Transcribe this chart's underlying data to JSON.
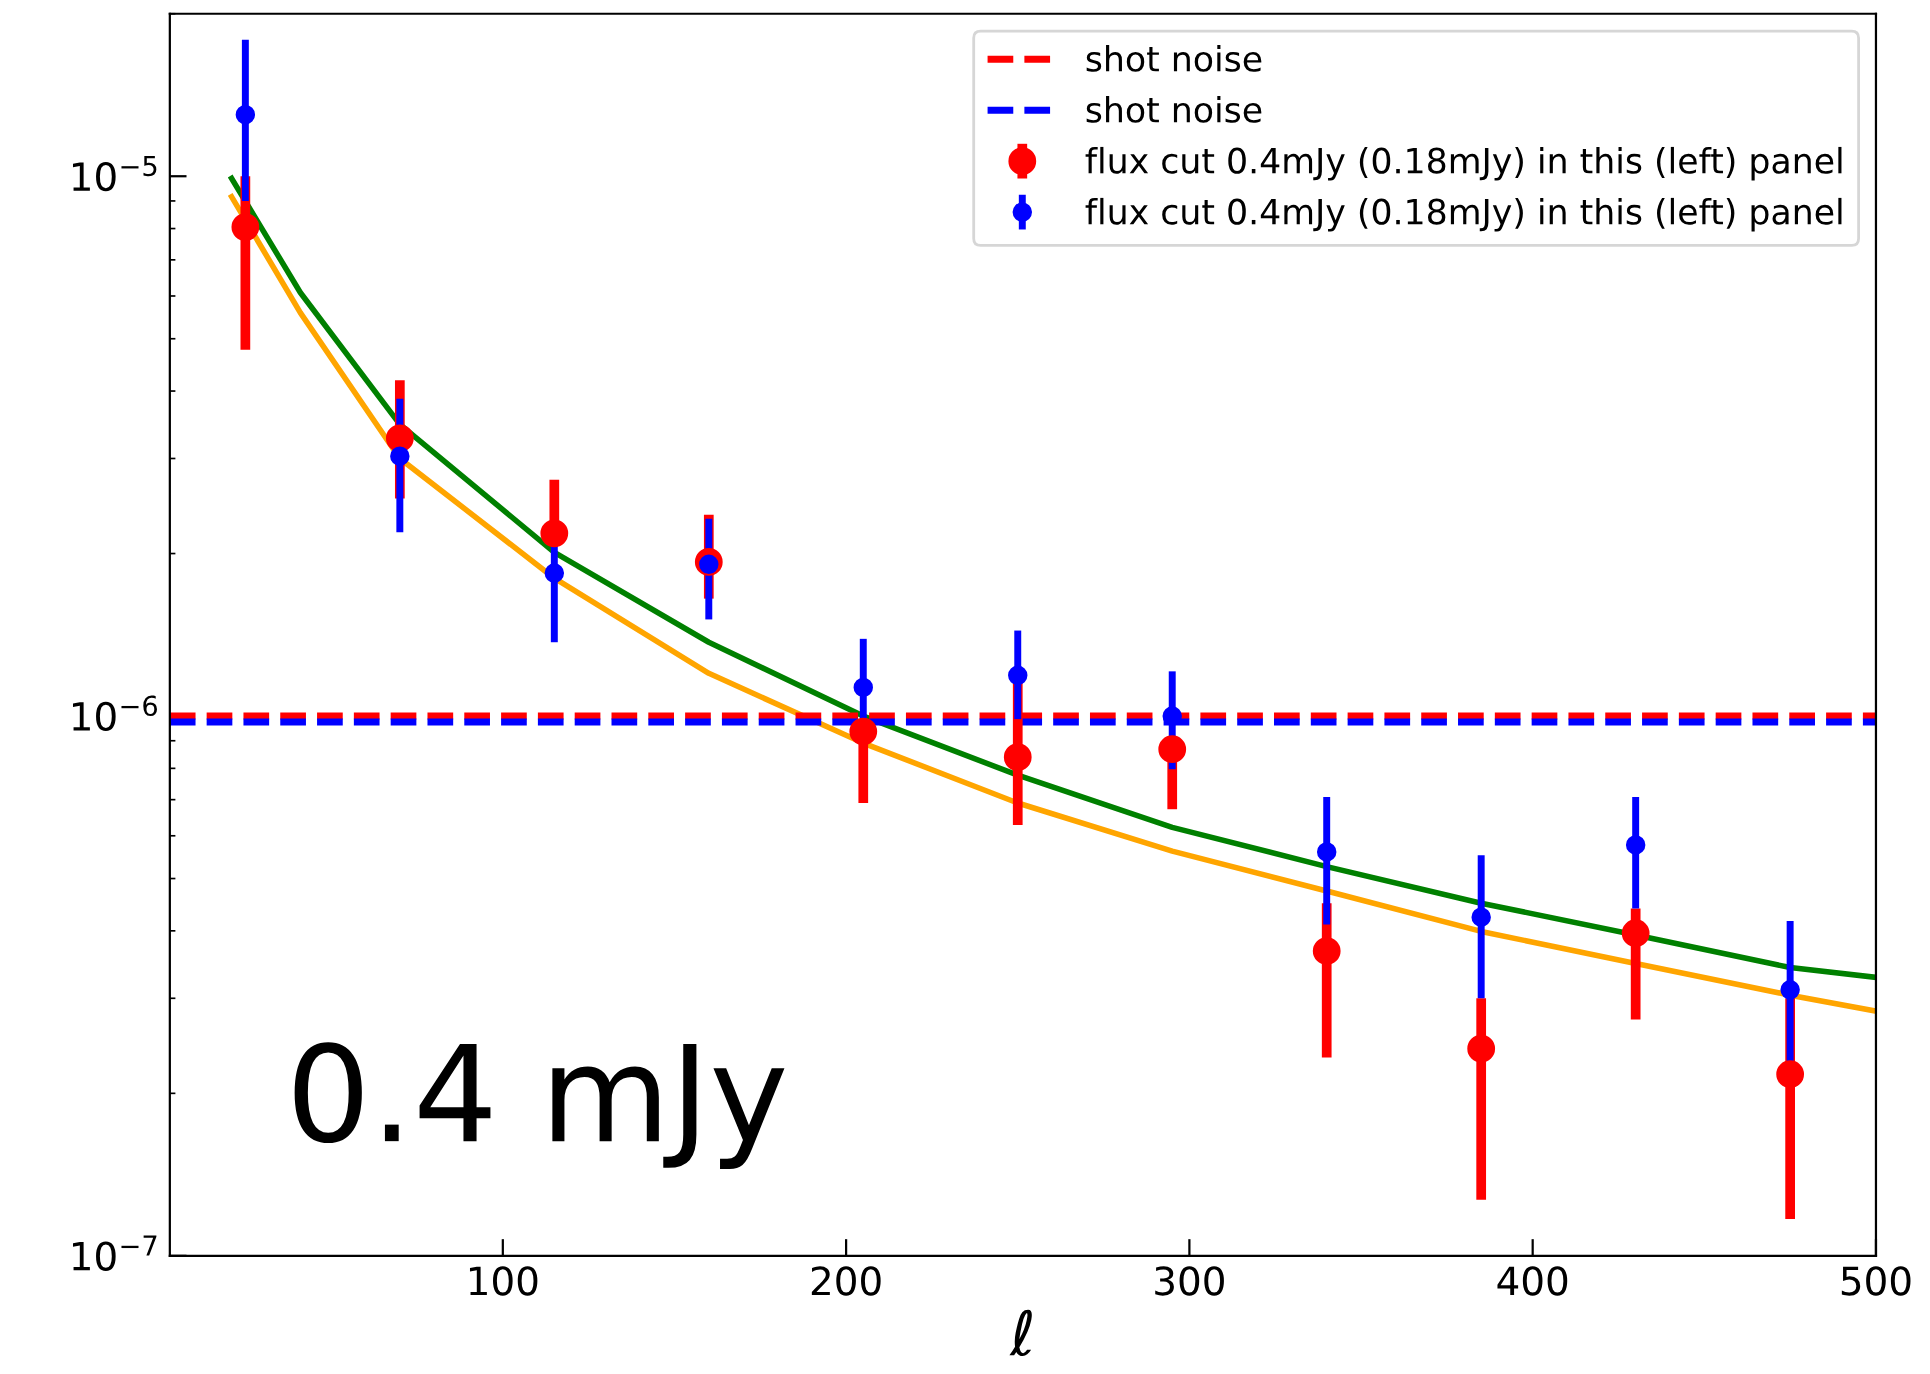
{
  "chart_data": {
    "type": "scatter",
    "xlabel": "ℓ",
    "xlim": [
      3,
      500
    ],
    "xticks": [
      100,
      200,
      300,
      400,
      500
    ],
    "ylim": [
      1e-07,
      2e-05
    ],
    "yticks": [
      {
        "value": 1e-07,
        "label": "10$^{−7}$"
      },
      {
        "value": 1e-06,
        "label": "10$^{−6}$"
      },
      {
        "value": 1e-05,
        "label": "10$^{−5}$"
      }
    ],
    "log": "y",
    "grid": false,
    "legend": "top right",
    "series": [
      {
        "type": "line",
        "color": "#ffa500",
        "marker": "none",
        "x": [
          21,
          41,
          70,
          115,
          160,
          205,
          250,
          295,
          340,
          385,
          430,
          475,
          500
        ],
        "values": [
          9.16e-06,
          5.59e-06,
          3e-06,
          1.8e-06,
          1.2e-06,
          8.91e-07,
          6.9e-07,
          5.62e-07,
          4.74e-07,
          3.99e-07,
          3.48e-07,
          3.04e-07,
          2.84e-07
        ]
      },
      {
        "type": "line",
        "color": "#008000",
        "marker": "none",
        "x": [
          21,
          41,
          70,
          115,
          160,
          205,
          250,
          295,
          340,
          385,
          430,
          475,
          500
        ],
        "values": [
          9.91e-06,
          6.09e-06,
          3.47e-06,
          2.01e-06,
          1.37e-06,
          1e-06,
          7.77e-07,
          6.22e-07,
          5.26e-07,
          4.5e-07,
          3.93e-07,
          3.42e-07,
          3.28e-07
        ]
      },
      {
        "name": "flux cut 0.4mJy (0.18mJy) in this (left) panel",
        "color": "#ff0000",
        "marker": "circle",
        "x": [
          25,
          70,
          115,
          160,
          205,
          250,
          295,
          340,
          385,
          430,
          475
        ],
        "values": [
          8.05e-06,
          3.27e-06,
          2.18e-06,
          1.93e-06,
          9.36e-07,
          8.39e-07,
          8.68e-07,
          3.67e-07,
          2.42e-07,
          3.96e-07,
          2.17e-07
        ],
        "errors": [
          [
            4.77e-06,
            1e-05
          ],
          [
            2.53e-06,
            4.19e-06
          ],
          [
            2.18e-06,
            2.74e-06
          ],
          [
            1.65e-06,
            2.36e-06
          ],
          [
            6.9e-07,
            9.36e-07
          ],
          [
            6.28e-07,
            1.17e-06
          ],
          [
            6.72e-07,
            8.68e-07
          ],
          [
            2.33e-07,
            4.5e-07
          ],
          [
            1.27e-07,
            3e-07
          ],
          [
            2.74e-07,
            4.4e-07
          ],
          [
            1.17e-07,
            3e-07
          ]
        ]
      },
      {
        "name": "flux cut 0.4mJy (0.18mJy) in this (left) panel",
        "color": "#0000ff",
        "marker": "circle",
        "x": [
          25,
          70,
          115,
          160,
          205,
          250,
          295,
          340,
          385,
          430,
          475
        ],
        "values": [
          1.3e-05,
          3.03e-06,
          1.84e-06,
          1.91e-06,
          1.13e-06,
          1.19e-06,
          1e-06,
          5.6e-07,
          4.24e-07,
          5.77e-07,
          3.11e-07
        ],
        "errors": [
          [
            9e-06,
            1.79e-05
          ],
          [
            2.19e-06,
            3.87e-06
          ],
          [
            1.37e-06,
            2.28e-06
          ],
          [
            1.51e-06,
            2.32e-06
          ],
          [
            9.06e-07,
            1.39e-06
          ],
          [
            9.87e-07,
            1.44e-06
          ],
          [
            7.97e-07,
            1.21e-06
          ],
          [
            4.11e-07,
            7.08e-07
          ],
          [
            3e-07,
            5.52e-07
          ],
          [
            4.4e-07,
            7.08e-07
          ],
          [
            2.07e-07,
            4.17e-07
          ]
        ]
      }
    ],
    "ref_lines": [
      {
        "axis": "y",
        "value": 1e-06,
        "label": "shot noise",
        "color": "#ff0000",
        "line_style": "dashed"
      },
      {
        "axis": "y",
        "value": 9.75e-07,
        "label": "shot noise",
        "color": "#0000ff",
        "line_style": "dashed"
      }
    ],
    "annotations": [
      "0.4 mJy"
    ]
  }
}
